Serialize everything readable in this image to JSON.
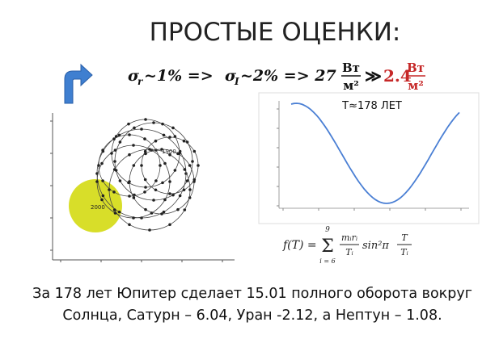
{
  "header": {
    "title": "ПРОСТЫЕ ОЦЕНКИ:"
  },
  "estimate": {
    "sigma_r": "σ",
    "sigma_r_sub": "r",
    "step1": "~1% =>",
    "sigma_i": "σ",
    "sigma_i_sub": "I",
    "step2": "~2% => 27",
    "unit1_num": "Вт",
    "unit1_den": "м²",
    "relation": "≫",
    "value2": "2.4",
    "unit2_num": "Вт",
    "unit2_den": "м²"
  },
  "orbit_plot": {
    "label_2000": "2000",
    "label_1900": "1900"
  },
  "period_plot": {
    "title": "T≈178 ЛЕТ"
  },
  "formula": {
    "lhs": "f(T) =",
    "sum_top": "9",
    "sum": "Σ",
    "sum_bottom": "i = 6",
    "frac1_num": "mᵢrᵢ",
    "frac1_den": "Tᵢ",
    "sin": "sin²π",
    "frac2_num": "T",
    "frac2_den": "Tᵢ"
  },
  "caption": {
    "line1": "За 178 лет Юпитер сделает 15.01 полного оборота вокруг",
    "line2": "Солнца, Сатурн – 6.04, Уран -2.12, а Нептун – 1.08."
  }
}
